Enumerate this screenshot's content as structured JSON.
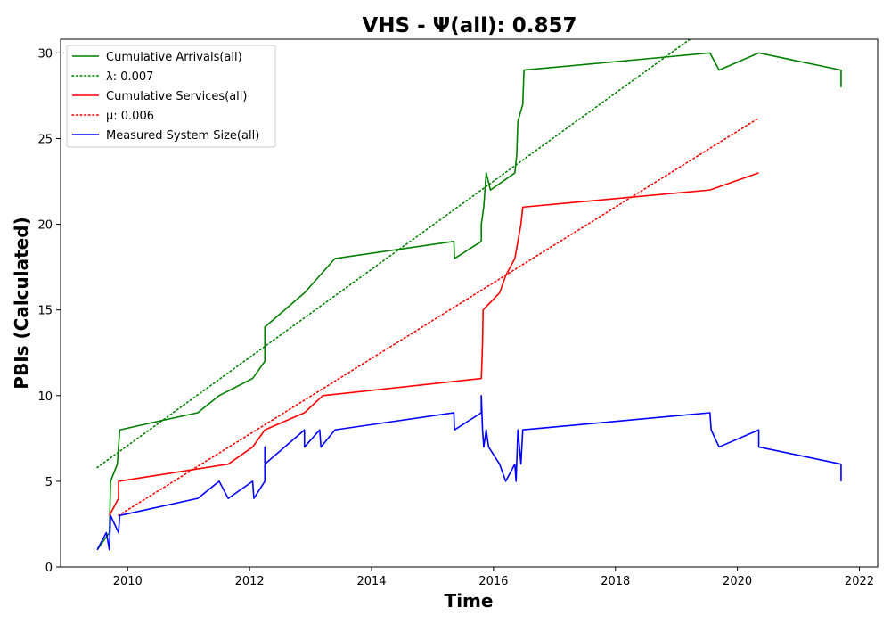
{
  "chart_data": {
    "type": "line",
    "title": "VHS -  Ψ(all): 0.857",
    "xlabel": "Time",
    "ylabel": "PBIs (Calculated)",
    "xlim": [
      2008.9,
      2022.3
    ],
    "ylim": [
      0,
      30.8
    ],
    "x_ticks": [
      2010,
      2012,
      2014,
      2016,
      2018,
      2020,
      2022
    ],
    "y_ticks": [
      0,
      5,
      10,
      15,
      20,
      25,
      30
    ],
    "grid": false,
    "legend_position": "top-left",
    "series": [
      {
        "name": "Cumulative Arrivals(all)",
        "color": "#008000",
        "style": "solid",
        "points": [
          [
            2009.5,
            1
          ],
          [
            2009.7,
            2
          ],
          [
            2009.72,
            5
          ],
          [
            2009.83,
            6
          ],
          [
            2009.87,
            8
          ],
          [
            2010.5,
            8.5
          ],
          [
            2011.15,
            9
          ],
          [
            2011.5,
            10
          ],
          [
            2012.05,
            11
          ],
          [
            2012.25,
            12
          ],
          [
            2012.25,
            14
          ],
          [
            2012.9,
            16
          ],
          [
            2013.15,
            17
          ],
          [
            2013.4,
            18
          ],
          [
            2015.35,
            19
          ],
          [
            2015.36,
            18
          ],
          [
            2015.8,
            19
          ],
          [
            2015.8,
            20
          ],
          [
            2015.84,
            21
          ],
          [
            2015.88,
            23
          ],
          [
            2015.95,
            22
          ],
          [
            2016.35,
            23
          ],
          [
            2016.38,
            24
          ],
          [
            2016.4,
            26
          ],
          [
            2016.48,
            27
          ],
          [
            2016.5,
            29
          ],
          [
            2019.55,
            30
          ],
          [
            2019.7,
            29
          ],
          [
            2020.35,
            30
          ],
          [
            2021.7,
            29
          ],
          [
            2021.7,
            28
          ]
        ]
      },
      {
        "name": "λ: 0.007",
        "color": "#008000",
        "style": "dotted",
        "points": [
          [
            2009.5,
            5.8
          ],
          [
            2019.3,
            31.0
          ]
        ]
      },
      {
        "name": "Cumulative Services(all)",
        "color": "#ff0000",
        "style": "solid",
        "points": [
          [
            2009.7,
            3
          ],
          [
            2009.85,
            4
          ],
          [
            2009.85,
            5
          ],
          [
            2011.65,
            6
          ],
          [
            2012.05,
            7
          ],
          [
            2012.25,
            8
          ],
          [
            2012.9,
            9
          ],
          [
            2013.2,
            10
          ],
          [
            2015.8,
            11
          ],
          [
            2015.82,
            13
          ],
          [
            2015.83,
            15
          ],
          [
            2016.1,
            16
          ],
          [
            2016.2,
            17
          ],
          [
            2016.35,
            18
          ],
          [
            2016.45,
            20
          ],
          [
            2016.48,
            21
          ],
          [
            2019.55,
            22
          ],
          [
            2020.35,
            23
          ]
        ]
      },
      {
        "name": "μ: 0.006",
        "color": "#ff0000",
        "style": "dotted",
        "points": [
          [
            2009.85,
            3.0
          ],
          [
            2020.35,
            26.2
          ]
        ]
      },
      {
        "name": "Measured System Size(all)",
        "color": "#0000ff",
        "style": "solid",
        "points": [
          [
            2009.5,
            1
          ],
          [
            2009.65,
            2
          ],
          [
            2009.7,
            1
          ],
          [
            2009.72,
            3
          ],
          [
            2009.85,
            2
          ],
          [
            2009.87,
            3
          ],
          [
            2011.15,
            4
          ],
          [
            2011.5,
            5
          ],
          [
            2011.65,
            4
          ],
          [
            2012.05,
            5
          ],
          [
            2012.07,
            4
          ],
          [
            2012.25,
            5
          ],
          [
            2012.25,
            7
          ],
          [
            2012.25,
            6
          ],
          [
            2012.9,
            8
          ],
          [
            2012.9,
            7
          ],
          [
            2013.15,
            8
          ],
          [
            2013.17,
            7
          ],
          [
            2013.4,
            8
          ],
          [
            2015.35,
            9
          ],
          [
            2015.36,
            8
          ],
          [
            2015.8,
            9
          ],
          [
            2015.8,
            10
          ],
          [
            2015.82,
            8
          ],
          [
            2015.84,
            7
          ],
          [
            2015.88,
            8
          ],
          [
            2015.92,
            7
          ],
          [
            2016.1,
            6
          ],
          [
            2016.2,
            5
          ],
          [
            2016.35,
            6
          ],
          [
            2016.37,
            5
          ],
          [
            2016.4,
            8
          ],
          [
            2016.45,
            6
          ],
          [
            2016.48,
            8
          ],
          [
            2019.55,
            9
          ],
          [
            2019.57,
            8
          ],
          [
            2019.7,
            7
          ],
          [
            2020.35,
            8
          ],
          [
            2020.35,
            7
          ],
          [
            2021.7,
            6
          ],
          [
            2021.7,
            5
          ]
        ]
      }
    ]
  }
}
